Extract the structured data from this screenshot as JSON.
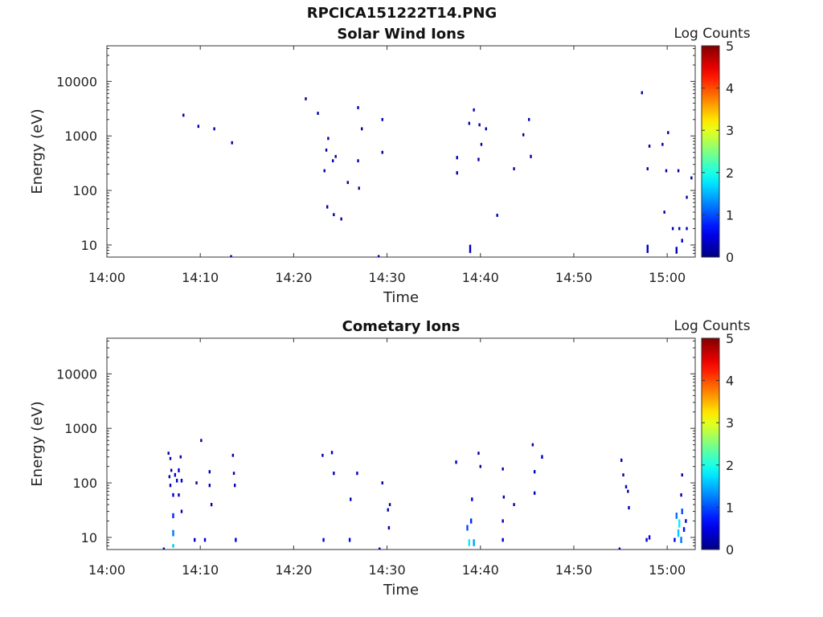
{
  "figure": {
    "title": "RPCICA151222T14.PNG"
  },
  "colorbar": {
    "label": "Log Counts",
    "ticks": [
      "0",
      "1",
      "2",
      "3",
      "4",
      "5"
    ],
    "range": [
      0,
      5
    ]
  },
  "chart_data": [
    {
      "type": "heatmap",
      "title": "Solar Wind Ions",
      "xlabel": "Time",
      "ylabel": "Energy (eV)",
      "x_ticks": [
        "14:00",
        "14:10",
        "14:20",
        "14:30",
        "14:40",
        "14:50",
        "15:00"
      ],
      "y_ticks": [
        "10",
        "100",
        "1000",
        "10000"
      ],
      "xlim": [
        "14:00",
        "15:03"
      ],
      "ylim": [
        6,
        45000
      ],
      "y_scale": "log",
      "colorbar_label": "Log Counts",
      "events": [
        {
          "t": 8.2,
          "e": 2400,
          "v": 0.2
        },
        {
          "t": 9.8,
          "e": 1500,
          "v": 0.2
        },
        {
          "t": 11.5,
          "e": 1350,
          "v": 0.2
        },
        {
          "t": 13.4,
          "e": 750,
          "v": 0.2
        },
        {
          "t": 13.3,
          "e": 6.1,
          "v": 0.2
        },
        {
          "t": 21.3,
          "e": 4800,
          "v": 0.2
        },
        {
          "t": 22.6,
          "e": 2600,
          "v": 0.2
        },
        {
          "t": 23.3,
          "e": 230,
          "v": 0.2
        },
        {
          "t": 23.5,
          "e": 550,
          "v": 0.2
        },
        {
          "t": 23.7,
          "e": 900,
          "v": 0.2
        },
        {
          "t": 24.2,
          "e": 350,
          "v": 0.2
        },
        {
          "t": 24.5,
          "e": 420,
          "v": 0.2
        },
        {
          "t": 23.6,
          "e": 50,
          "v": 0.3
        },
        {
          "t": 24.3,
          "e": 36,
          "v": 0.2
        },
        {
          "t": 25.1,
          "e": 30,
          "v": 0.2
        },
        {
          "t": 25.8,
          "e": 140,
          "v": 0.2
        },
        {
          "t": 26.9,
          "e": 3300,
          "v": 0.2
        },
        {
          "t": 27.3,
          "e": 1350,
          "v": 0.2
        },
        {
          "t": 26.9,
          "e": 350,
          "v": 0.2
        },
        {
          "t": 27.0,
          "e": 110,
          "v": 0.2
        },
        {
          "t": 29.5,
          "e": 2000,
          "v": 0.2
        },
        {
          "t": 29.5,
          "e": 500,
          "v": 0.2
        },
        {
          "t": 29.1,
          "e": 6.1,
          "v": 0.2
        },
        {
          "t": 37.5,
          "e": 400,
          "v": 0.3
        },
        {
          "t": 37.5,
          "e": 210,
          "v": 0.3
        },
        {
          "t": 38.8,
          "e": 1700,
          "v": 0.2
        },
        {
          "t": 39.3,
          "e": 3000,
          "v": 0.2
        },
        {
          "t": 39.9,
          "e": 1600,
          "v": 0.2
        },
        {
          "t": 40.6,
          "e": 1350,
          "v": 0.2
        },
        {
          "t": 39.8,
          "e": 370,
          "v": 0.3
        },
        {
          "t": 40.1,
          "e": 700,
          "v": 0.2
        },
        {
          "t": 38.9,
          "e": 8.5,
          "v": 0.3
        },
        {
          "t": 41.8,
          "e": 35,
          "v": 0.2
        },
        {
          "t": 43.6,
          "e": 250,
          "v": 0.2
        },
        {
          "t": 44.6,
          "e": 1050,
          "v": 0.2
        },
        {
          "t": 45.2,
          "e": 2000,
          "v": 0.2
        },
        {
          "t": 45.4,
          "e": 420,
          "v": 0.3
        },
        {
          "t": 57.3,
          "e": 6200,
          "v": 0.2
        },
        {
          "t": 57.9,
          "e": 250,
          "v": 0.2
        },
        {
          "t": 58.1,
          "e": 650,
          "v": 0.2
        },
        {
          "t": 57.9,
          "e": 8.5,
          "v": 0.3
        },
        {
          "t": 59.5,
          "e": 700,
          "v": 0.2
        },
        {
          "t": 59.7,
          "e": 40,
          "v": 0.2
        },
        {
          "t": 59.9,
          "e": 230,
          "v": 0.2
        },
        {
          "t": 60.1,
          "e": 1150,
          "v": 0.2
        },
        {
          "t": 60.6,
          "e": 20,
          "v": 0.2
        },
        {
          "t": 61.0,
          "e": 8,
          "v": 0.3
        },
        {
          "t": 61.2,
          "e": 230,
          "v": 0.2
        },
        {
          "t": 61.3,
          "e": 20,
          "v": 0.2
        },
        {
          "t": 61.6,
          "e": 12,
          "v": 0.4
        },
        {
          "t": 62.1,
          "e": 20,
          "v": 0.2
        },
        {
          "t": 62.1,
          "e": 75,
          "v": 0.2
        },
        {
          "t": 62.6,
          "e": 170,
          "v": 0.2
        }
      ]
    },
    {
      "type": "heatmap",
      "title": "Cometary Ions",
      "xlabel": "Time",
      "ylabel": "Energy (eV)",
      "x_ticks": [
        "14:00",
        "14:10",
        "14:20",
        "14:30",
        "14:40",
        "14:50",
        "15:00"
      ],
      "y_ticks": [
        "10",
        "100",
        "1000",
        "10000"
      ],
      "xlim": [
        "14:00",
        "15:03"
      ],
      "ylim": [
        6,
        45000
      ],
      "y_scale": "log",
      "colorbar_label": "Log Counts",
      "events": [
        {
          "t": 6.1,
          "e": 6.1,
          "v": 0.2
        },
        {
          "t": 6.6,
          "e": 350,
          "v": 0.2
        },
        {
          "t": 6.8,
          "e": 280,
          "v": 0.2
        },
        {
          "t": 6.9,
          "e": 170,
          "v": 0.2
        },
        {
          "t": 6.7,
          "e": 130,
          "v": 0.2
        },
        {
          "t": 6.8,
          "e": 90,
          "v": 0.3
        },
        {
          "t": 7.1,
          "e": 60,
          "v": 0.4
        },
        {
          "t": 7.1,
          "e": 25,
          "v": 0.8
        },
        {
          "t": 7.1,
          "e": 12,
          "v": 1.2
        },
        {
          "t": 7.1,
          "e": 7,
          "v": 1.6
        },
        {
          "t": 7.3,
          "e": 140,
          "v": 0.4
        },
        {
          "t": 7.5,
          "e": 110,
          "v": 0.4
        },
        {
          "t": 7.7,
          "e": 170,
          "v": 0.5
        },
        {
          "t": 7.7,
          "e": 60,
          "v": 0.3
        },
        {
          "t": 7.9,
          "e": 300,
          "v": 0.2
        },
        {
          "t": 8.0,
          "e": 110,
          "v": 0.4
        },
        {
          "t": 8.0,
          "e": 30,
          "v": 0.3
        },
        {
          "t": 9.4,
          "e": 9,
          "v": 0.4
        },
        {
          "t": 9.6,
          "e": 100,
          "v": 0.2
        },
        {
          "t": 10.1,
          "e": 600,
          "v": 0.2
        },
        {
          "t": 10.5,
          "e": 9,
          "v": 0.4
        },
        {
          "t": 11.0,
          "e": 160,
          "v": 0.3
        },
        {
          "t": 11.0,
          "e": 90,
          "v": 0.3
        },
        {
          "t": 11.2,
          "e": 40,
          "v": 0.3
        },
        {
          "t": 13.5,
          "e": 320,
          "v": 0.2
        },
        {
          "t": 13.6,
          "e": 150,
          "v": 0.2
        },
        {
          "t": 13.7,
          "e": 90,
          "v": 0.3
        },
        {
          "t": 13.8,
          "e": 9,
          "v": 0.5
        },
        {
          "t": 23.1,
          "e": 320,
          "v": 0.2
        },
        {
          "t": 23.2,
          "e": 9,
          "v": 0.4
        },
        {
          "t": 24.1,
          "e": 360,
          "v": 0.3
        },
        {
          "t": 24.3,
          "e": 150,
          "v": 0.3
        },
        {
          "t": 26.0,
          "e": 9,
          "v": 0.5
        },
        {
          "t": 26.1,
          "e": 50,
          "v": 0.3
        },
        {
          "t": 26.8,
          "e": 150,
          "v": 0.3
        },
        {
          "t": 29.2,
          "e": 6.1,
          "v": 0.2
        },
        {
          "t": 29.5,
          "e": 100,
          "v": 0.2
        },
        {
          "t": 30.1,
          "e": 32,
          "v": 0.3
        },
        {
          "t": 30.3,
          "e": 40,
          "v": 0.2
        },
        {
          "t": 30.2,
          "e": 15,
          "v": 0.3
        },
        {
          "t": 37.4,
          "e": 240,
          "v": 0.3
        },
        {
          "t": 38.6,
          "e": 15,
          "v": 1.0
        },
        {
          "t": 38.8,
          "e": 8,
          "v": 1.8
        },
        {
          "t": 39.0,
          "e": 20,
          "v": 0.8
        },
        {
          "t": 39.1,
          "e": 50,
          "v": 0.4
        },
        {
          "t": 39.3,
          "e": 8,
          "v": 1.4
        },
        {
          "t": 39.8,
          "e": 350,
          "v": 0.2
        },
        {
          "t": 40.0,
          "e": 200,
          "v": 0.2
        },
        {
          "t": 42.4,
          "e": 180,
          "v": 0.2
        },
        {
          "t": 42.5,
          "e": 55,
          "v": 0.2
        },
        {
          "t": 42.4,
          "e": 20,
          "v": 0.3
        },
        {
          "t": 42.4,
          "e": 9,
          "v": 0.4
        },
        {
          "t": 43.6,
          "e": 40,
          "v": 0.2
        },
        {
          "t": 45.6,
          "e": 500,
          "v": 0.2
        },
        {
          "t": 45.8,
          "e": 160,
          "v": 0.3
        },
        {
          "t": 45.8,
          "e": 65,
          "v": 0.3
        },
        {
          "t": 46.6,
          "e": 300,
          "v": 0.4
        },
        {
          "t": 54.9,
          "e": 6.1,
          "v": 0.2
        },
        {
          "t": 55.1,
          "e": 260,
          "v": 0.3
        },
        {
          "t": 55.3,
          "e": 140,
          "v": 0.2
        },
        {
          "t": 55.6,
          "e": 85,
          "v": 0.3
        },
        {
          "t": 55.8,
          "e": 70,
          "v": 0.2
        },
        {
          "t": 55.9,
          "e": 35,
          "v": 0.3
        },
        {
          "t": 57.8,
          "e": 9,
          "v": 0.4
        },
        {
          "t": 58.1,
          "e": 10,
          "v": 0.6
        },
        {
          "t": 60.8,
          "e": 9,
          "v": 0.5
        },
        {
          "t": 61.0,
          "e": 25,
          "v": 1.2
        },
        {
          "t": 61.2,
          "e": 12,
          "v": 1.6
        },
        {
          "t": 61.3,
          "e": 18,
          "v": 1.8
        },
        {
          "t": 61.5,
          "e": 9,
          "v": 1.2
        },
        {
          "t": 61.6,
          "e": 30,
          "v": 1.0
        },
        {
          "t": 61.5,
          "e": 60,
          "v": 0.3
        },
        {
          "t": 61.6,
          "e": 140,
          "v": 0.2
        },
        {
          "t": 61.8,
          "e": 14,
          "v": 0.7
        },
        {
          "t": 62.0,
          "e": 20,
          "v": 0.4
        }
      ]
    }
  ]
}
